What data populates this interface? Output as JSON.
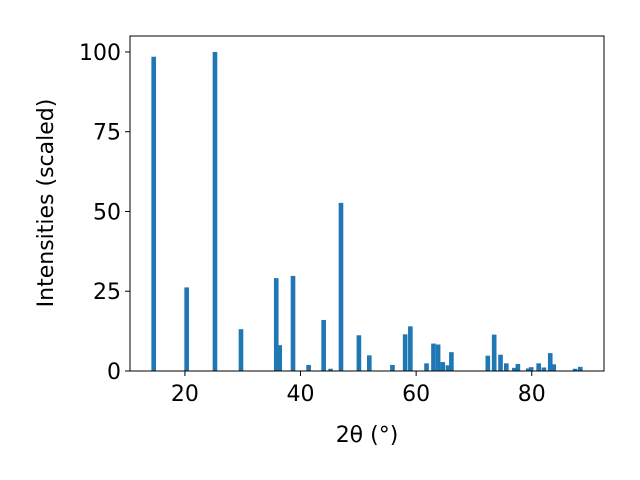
{
  "chart_data": {
    "type": "bar",
    "xlabel": "2θ (°)",
    "ylabel": "Intensities (scaled)",
    "xlim": [
      10.5,
      92.5
    ],
    "ylim": [
      0,
      105
    ],
    "xticks": [
      20,
      40,
      60,
      80
    ],
    "yticks": [
      0,
      25,
      50,
      75,
      100
    ],
    "grid": false,
    "bar_color": "#1f77b4",
    "bar_width": 0.8,
    "points": [
      {
        "x": 14.6,
        "y": 98.5
      },
      {
        "x": 20.3,
        "y": 26.2
      },
      {
        "x": 25.2,
        "y": 100
      },
      {
        "x": 29.7,
        "y": 13.1
      },
      {
        "x": 35.8,
        "y": 29.1
      },
      {
        "x": 36.4,
        "y": 8.1
      },
      {
        "x": 38.7,
        "y": 29.8
      },
      {
        "x": 41.4,
        "y": 1.9
      },
      {
        "x": 44.0,
        "y": 16.0
      },
      {
        "x": 45.2,
        "y": 0.7
      },
      {
        "x": 47.0,
        "y": 52.7
      },
      {
        "x": 50.1,
        "y": 11.2
      },
      {
        "x": 51.9,
        "y": 4.9
      },
      {
        "x": 55.9,
        "y": 1.9
      },
      {
        "x": 58.1,
        "y": 11.5
      },
      {
        "x": 59.0,
        "y": 14.0
      },
      {
        "x": 61.8,
        "y": 2.4
      },
      {
        "x": 63.0,
        "y": 8.6
      },
      {
        "x": 63.8,
        "y": 8.3
      },
      {
        "x": 64.6,
        "y": 2.8
      },
      {
        "x": 65.5,
        "y": 1.8
      },
      {
        "x": 66.1,
        "y": 5.9
      },
      {
        "x": 72.4,
        "y": 4.8
      },
      {
        "x": 73.5,
        "y": 11.4
      },
      {
        "x": 74.6,
        "y": 5.1
      },
      {
        "x": 75.6,
        "y": 2.4
      },
      {
        "x": 77.0,
        "y": 1.0
      },
      {
        "x": 77.6,
        "y": 2.2
      },
      {
        "x": 79.4,
        "y": 0.8
      },
      {
        "x": 79.9,
        "y": 1.2
      },
      {
        "x": 81.2,
        "y": 2.4
      },
      {
        "x": 82.1,
        "y": 1.1
      },
      {
        "x": 83.2,
        "y": 5.6
      },
      {
        "x": 83.8,
        "y": 2.1
      },
      {
        "x": 87.5,
        "y": 0.7
      },
      {
        "x": 88.4,
        "y": 1.3
      }
    ]
  }
}
